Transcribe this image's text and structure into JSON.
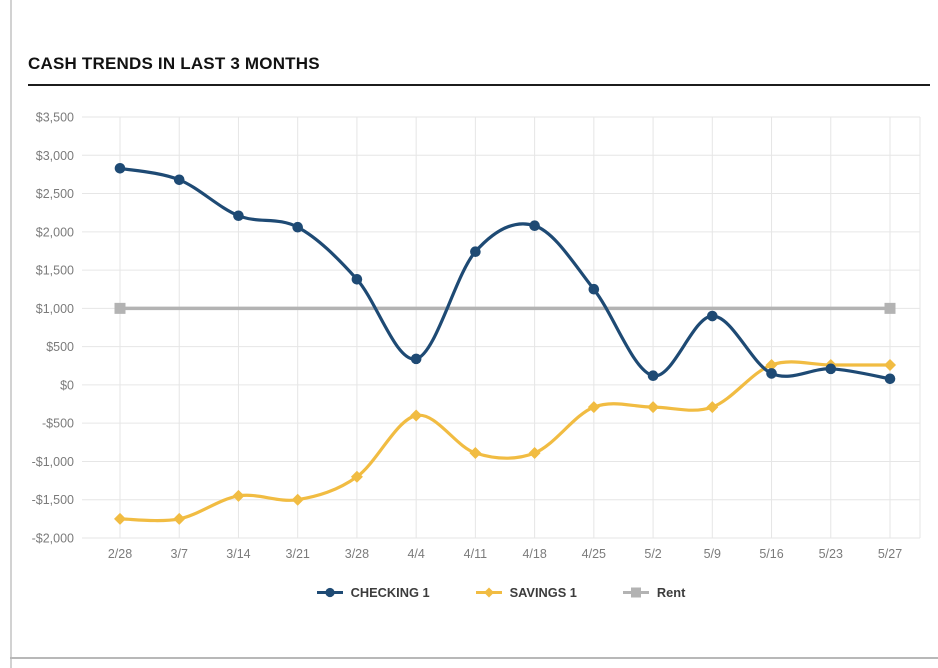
{
  "header": {
    "title": "CASH TRENDS IN LAST 3 MONTHS"
  },
  "chart_data": {
    "type": "line",
    "title": "CASH TRENDS IN LAST 3 MONTHS",
    "categories": [
      "2/28",
      "3/7",
      "3/14",
      "3/21",
      "3/28",
      "4/4",
      "4/11",
      "4/18",
      "4/25",
      "5/2",
      "5/9",
      "5/16",
      "5/23",
      "5/27"
    ],
    "series": [
      {
        "name": "CHECKING 1",
        "color": "#1E4A74",
        "marker": "circle",
        "smooth": true,
        "markers": "all",
        "values": [
          2830,
          2680,
          2210,
          2060,
          1380,
          340,
          1740,
          2080,
          1250,
          120,
          900,
          150,
          210,
          80
        ]
      },
      {
        "name": "SAVINGS 1",
        "color": "#F1BC42",
        "marker": "diamond",
        "smooth": true,
        "markers": "all",
        "values": [
          -1750,
          -1750,
          -1450,
          -1500,
          -1200,
          -400,
          -890,
          -890,
          -290,
          -290,
          -290,
          260,
          260,
          260
        ]
      },
      {
        "name": "Rent",
        "color": "#B3B3B3",
        "marker": "square",
        "smooth": false,
        "markers": "ends",
        "values": [
          1000,
          1000,
          1000,
          1000,
          1000,
          1000,
          1000,
          1000,
          1000,
          1000,
          1000,
          1000,
          1000,
          1000
        ]
      }
    ],
    "y_axis": {
      "min": -2000,
      "max": 3500,
      "step": 500,
      "ticks": [
        {
          "label": "$3,500",
          "value": 3500
        },
        {
          "label": "$3,000",
          "value": 3000
        },
        {
          "label": "$2,500",
          "value": 2500
        },
        {
          "label": "$2,000",
          "value": 2000
        },
        {
          "label": "$1,500",
          "value": 1500
        },
        {
          "label": "$1,000",
          "value": 1000
        },
        {
          "label": "$500",
          "value": 500
        },
        {
          "label": "$0",
          "value": 0
        },
        {
          "label": "-$500",
          "value": -500
        },
        {
          "label": "-$1,000",
          "value": -1000
        },
        {
          "label": "-$1,500",
          "value": -1500
        },
        {
          "label": "-$2,000",
          "value": -2000
        }
      ]
    },
    "grid": true,
    "legend_position": "bottom",
    "colors": {
      "grid": "#e6e6e6",
      "tick_text": "#7b7b7b",
      "legend_text": "#3c3c3c"
    }
  }
}
